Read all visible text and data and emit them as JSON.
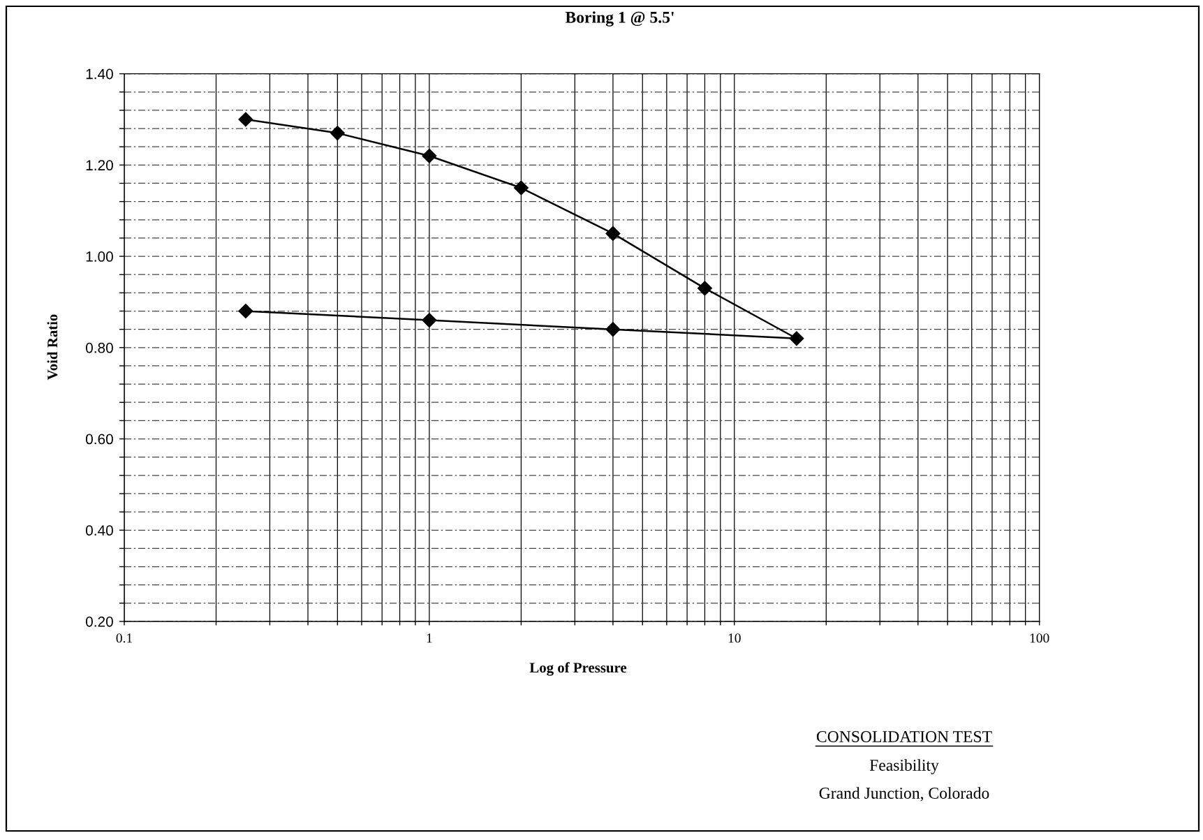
{
  "chart_data": {
    "type": "line",
    "title": "Boring 1 @ 5.5'",
    "xlabel": "Log of Pressure",
    "ylabel": "Void Ratio",
    "annotations": [
      "CONSOLIDATION TEST",
      "Feasibility",
      "Grand Junction, Colorado"
    ],
    "x": [
      0.25,
      0.5,
      1,
      2,
      4,
      8,
      16,
      4,
      1,
      0.25
    ],
    "series": [
      {
        "color": "#000000",
        "values": [
          1.3,
          1.27,
          1.22,
          1.15,
          1.05,
          0.93,
          0.82,
          0.84,
          0.86,
          0.88
        ]
      }
    ],
    "log": "x",
    "xlim": [
      0.1,
      100
    ],
    "ylim": [
      0.2,
      1.4
    ],
    "xticks": [
      0.1,
      {
        "value": 0.2,
        "label": null
      },
      {
        "value": 0.3,
        "label": null
      },
      {
        "value": 0.4,
        "label": null
      },
      {
        "value": 0.5,
        "label": null
      },
      {
        "value": 0.6,
        "label": null
      },
      {
        "value": 0.7,
        "label": null
      },
      {
        "value": 0.8,
        "label": null
      },
      {
        "value": 0.9,
        "label": null
      },
      1,
      {
        "value": 2,
        "label": null
      },
      {
        "value": 3,
        "label": null
      },
      {
        "value": 4,
        "label": null
      },
      {
        "value": 5,
        "label": null
      },
      {
        "value": 6,
        "label": null
      },
      {
        "value": 7,
        "label": null
      },
      {
        "value": 8,
        "label": null
      },
      {
        "value": 9,
        "label": null
      },
      10,
      {
        "value": 20,
        "label": null
      },
      {
        "value": 30,
        "label": null
      },
      {
        "value": 40,
        "label": null
      },
      {
        "value": 50,
        "label": null
      },
      {
        "value": 60,
        "label": null
      },
      {
        "value": 70,
        "label": null
      },
      {
        "value": 80,
        "label": null
      },
      {
        "value": 90,
        "label": null
      },
      100
    ],
    "yticks": [
      {
        "value": 0.2,
        "label": "0.20"
      },
      {
        "value": 0.24,
        "label": null
      },
      {
        "value": 0.28,
        "label": null
      },
      {
        "value": 0.32,
        "label": null
      },
      {
        "value": 0.36,
        "label": null
      },
      {
        "value": 0.4,
        "label": "0.40"
      },
      {
        "value": 0.44,
        "label": null
      },
      {
        "value": 0.48,
        "label": null
      },
      {
        "value": 0.52,
        "label": null
      },
      {
        "value": 0.56,
        "label": null
      },
      {
        "value": 0.6,
        "label": "0.60"
      },
      {
        "value": 0.64,
        "label": null
      },
      {
        "value": 0.68,
        "label": null
      },
      {
        "value": 0.72,
        "label": null
      },
      {
        "value": 0.76,
        "label": null
      },
      {
        "value": 0.8,
        "label": "0.80"
      },
      {
        "value": 0.84,
        "label": null
      },
      {
        "value": 0.88,
        "label": null
      },
      {
        "value": 0.92,
        "label": null
      },
      {
        "value": 0.96,
        "label": null
      },
      {
        "value": 1.0,
        "label": "1.00"
      },
      {
        "value": 1.04,
        "label": null
      },
      {
        "value": 1.08,
        "label": null
      },
      {
        "value": 1.12,
        "label": null
      },
      {
        "value": 1.16,
        "label": null
      },
      {
        "value": 1.2,
        "label": "1.20"
      },
      {
        "value": 1.24,
        "label": null
      },
      {
        "value": 1.28,
        "label": null
      },
      {
        "value": 1.32,
        "label": null
      },
      {
        "value": 1.36,
        "label": null
      },
      {
        "value": 1.4,
        "label": "1.40"
      }
    ],
    "grid": true,
    "marker": "diamond",
    "line_style": "solid"
  }
}
